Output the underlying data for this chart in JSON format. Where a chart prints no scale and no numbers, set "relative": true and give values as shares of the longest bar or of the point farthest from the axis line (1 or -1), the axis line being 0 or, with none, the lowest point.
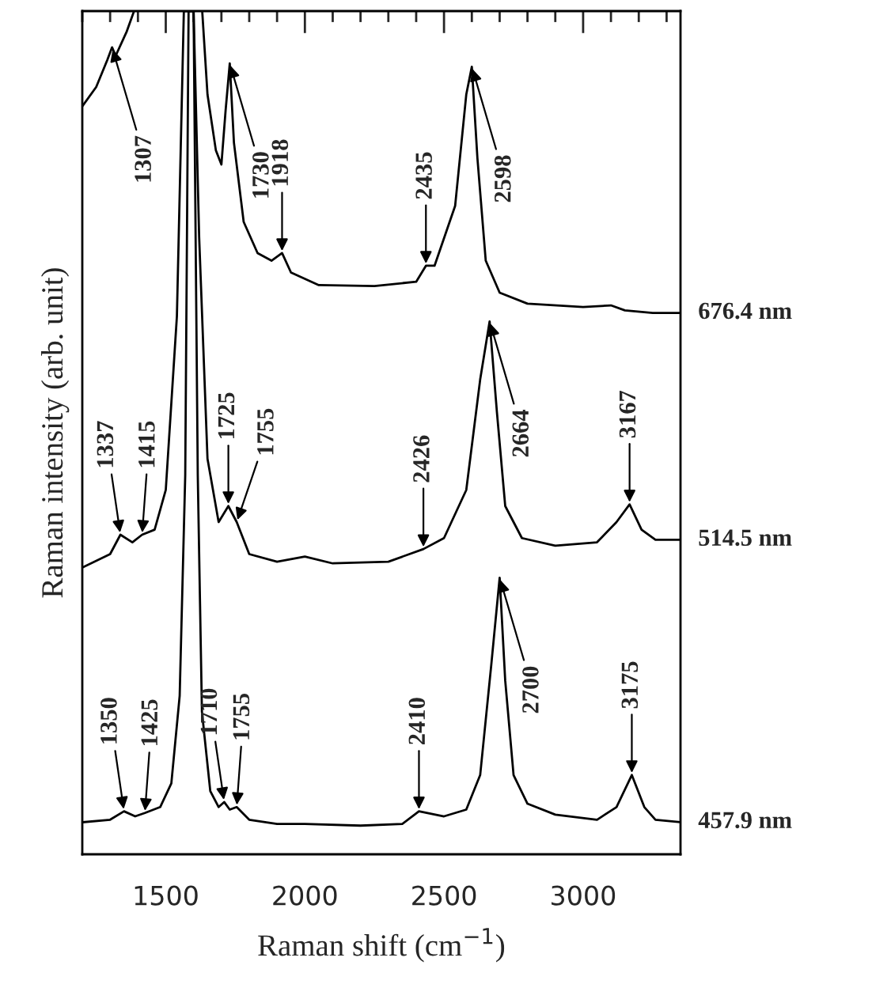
{
  "chart_data": {
    "type": "line",
    "relative": true,
    "xlabel": "Raman shift (cm$^{−1}$)",
    "ylabel": "Raman intensity (arb. unit)",
    "xlim": [
      1200,
      3350
    ],
    "xticks": [
      {
        "value": 1200,
        "label": null
      },
      {
        "value": 1300,
        "label": null
      },
      {
        "value": 1400,
        "label": null
      },
      1500,
      {
        "value": 1600,
        "label": null
      },
      {
        "value": 1700,
        "label": null
      },
      {
        "value": 1800,
        "label": null
      },
      {
        "value": 1900,
        "label": null
      },
      2000,
      {
        "value": 2100,
        "label": null
      },
      {
        "value": 2200,
        "label": null
      },
      {
        "value": 2300,
        "label": null
      },
      {
        "value": 2400,
        "label": null
      },
      2500,
      {
        "value": 2600,
        "label": null
      },
      {
        "value": 2700,
        "label": null
      },
      {
        "value": 2800,
        "label": null
      },
      {
        "value": 2900,
        "label": null
      },
      3000,
      {
        "value": 3100,
        "label": null
      },
      {
        "value": 3200,
        "label": null
      },
      {
        "value": 3300,
        "label": null
      }
    ],
    "grid": false,
    "legend": false,
    "marker": "none",
    "line_style": "solid",
    "series": [
      {
        "name": "676.4 nm",
        "color": "#000000",
        "x": [
          1200,
          1250,
          1290,
          1307,
          1320,
          1360,
          1386,
          1500,
          1631,
          1650,
          1680,
          1700,
          1715,
          1730,
          1745,
          1780,
          1830,
          1880,
          1918,
          1950,
          2050,
          2250,
          2400,
          2435,
          2466,
          2540,
          2580,
          2600,
          2620,
          2650,
          2700,
          2800,
          3000,
          3100,
          3150,
          3250,
          3350
        ],
        "values": [
          0.887,
          0.91,
          0.942,
          0.957,
          0.947,
          0.976,
          1.0,
          null,
          1.0,
          0.901,
          0.835,
          0.818,
          0.882,
          0.938,
          0.844,
          0.75,
          0.713,
          0.704,
          0.713,
          0.69,
          0.675,
          0.674,
          0.679,
          0.698,
          0.698,
          0.769,
          0.901,
          0.934,
          0.826,
          0.704,
          0.666,
          0.653,
          0.649,
          0.651,
          0.645,
          0.642,
          0.642
        ]
      },
      {
        "name": "514.5 nm",
        "color": "#000000",
        "x": [
          1200,
          1300,
          1337,
          1380,
          1415,
          1460,
          1500,
          1540,
          1565,
          1600,
          1620,
          1650,
          1690,
          1725,
          1755,
          1800,
          1900,
          2000,
          2100,
          2300,
          2426,
          2500,
          2580,
          2630,
          2664,
          2690,
          2720,
          2780,
          2900,
          3050,
          3120,
          3167,
          3210,
          3260,
          3350
        ],
        "values": [
          0.34,
          0.356,
          0.379,
          0.37,
          0.379,
          0.385,
          0.432,
          0.638,
          1.0,
          1.0,
          0.732,
          0.469,
          0.394,
          0.413,
          0.394,
          0.356,
          0.347,
          0.353,
          0.345,
          0.347,
          0.362,
          0.375,
          0.432,
          0.563,
          0.632,
          0.525,
          0.413,
          0.375,
          0.366,
          0.37,
          0.394,
          0.415,
          0.385,
          0.373,
          0.373
        ]
      },
      {
        "name": "457.9 nm",
        "color": "#000000",
        "x": [
          1200,
          1300,
          1350,
          1390,
          1425,
          1480,
          1520,
          1550,
          1570,
          1582,
          1600,
          1615,
          1630,
          1660,
          1690,
          1710,
          1730,
          1755,
          1800,
          1900,
          2000,
          2200,
          2350,
          2410,
          2500,
          2580,
          2630,
          2670,
          2700,
          2720,
          2750,
          2800,
          2900,
          3050,
          3120,
          3175,
          3220,
          3260,
          3350
        ],
        "values": [
          0.038,
          0.041,
          0.051,
          0.045,
          0.049,
          0.056,
          0.084,
          0.188,
          0.45,
          1.0,
          1.0,
          0.45,
          0.169,
          0.075,
          0.056,
          0.062,
          0.053,
          0.056,
          0.041,
          0.036,
          0.036,
          0.034,
          0.036,
          0.051,
          0.045,
          0.053,
          0.094,
          0.225,
          0.328,
          0.206,
          0.094,
          0.06,
          0.047,
          0.041,
          0.056,
          0.094,
          0.056,
          0.041,
          0.038
        ]
      }
    ],
    "annotations": [
      {
        "text": "1307",
        "x": 1307,
        "y": 0.957
      },
      {
        "text": "1730",
        "x": 1730,
        "y": 0.938
      },
      {
        "text": "1918",
        "x": 1918,
        "y": 0.713
      },
      {
        "text": "2435",
        "x": 2435,
        "y": 0.698
      },
      {
        "text": "2598",
        "x": 2600,
        "y": 0.934
      },
      {
        "text": "1337",
        "x": 1337,
        "y": 0.379
      },
      {
        "text": "1415",
        "x": 1415,
        "y": 0.379
      },
      {
        "text": "1725",
        "x": 1725,
        "y": 0.413
      },
      {
        "text": "1755",
        "x": 1755,
        "y": 0.394
      },
      {
        "text": "2426",
        "x": 2426,
        "y": 0.362
      },
      {
        "text": "2664",
        "x": 2664,
        "y": 0.632
      },
      {
        "text": "3167",
        "x": 3167,
        "y": 0.415
      },
      {
        "text": "1350",
        "x": 1350,
        "y": 0.051
      },
      {
        "text": "1425",
        "x": 1425,
        "y": 0.049
      },
      {
        "text": "1710",
        "x": 1710,
        "y": 0.062
      },
      {
        "text": "1755",
        "x": 1755,
        "y": 0.056
      },
      {
        "text": "2410",
        "x": 2410,
        "y": 0.051
      },
      {
        "text": "2700",
        "x": 2700,
        "y": 0.328
      },
      {
        "text": "3175",
        "x": 3175,
        "y": 0.094
      }
    ]
  }
}
